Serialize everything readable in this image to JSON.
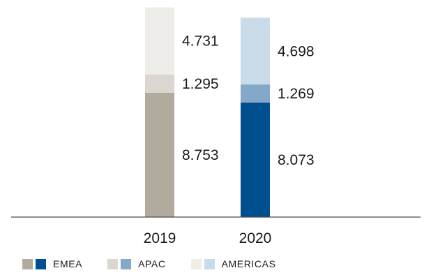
{
  "chart_data": {
    "type": "bar",
    "stacked": true,
    "categories": [
      "2019",
      "2020"
    ],
    "series": [
      {
        "name": "EMEA",
        "values": [
          8.753,
          8.073
        ]
      },
      {
        "name": "APAC",
        "values": [
          1.295,
          1.269
        ]
      },
      {
        "name": "AMERICAS",
        "values": [
          4.731,
          4.698
        ]
      }
    ],
    "value_labels": [
      [
        "8.753",
        "8.073"
      ],
      [
        "1.295",
        "1.269"
      ],
      [
        "4.731",
        "4.698"
      ]
    ],
    "colors": {
      "2019": [
        "#b2aa9c",
        "#dbd6d0",
        "#efedea"
      ],
      "2020": [
        "#00508f",
        "#84a8ca",
        "#c9dae8"
      ]
    },
    "legend": [
      "EMEA",
      "APAC",
      "AMERICAS"
    ],
    "legend_position": "bottom-left",
    "ylim": [
      0,
      14.9
    ],
    "grid": false,
    "axis_color": "#4a4a4a",
    "label_color": "#1a1a1a"
  }
}
